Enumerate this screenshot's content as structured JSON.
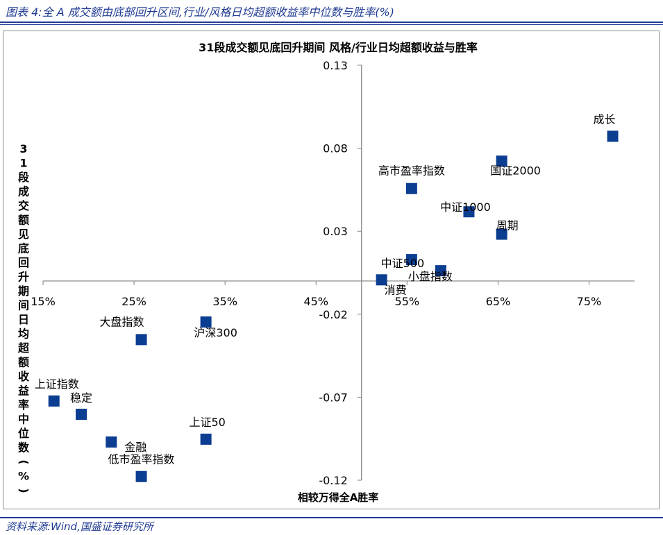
{
  "header": {
    "figure_title": "图表 4:全 A 成交额由底部回升区间,行业/风格日均超额收益率中位数与胜率(%)"
  },
  "source": {
    "text": "资料来源:Wind,国盛证券研究所"
  },
  "colors": {
    "marker": "#0b3d91",
    "axis": "#808080",
    "header_blue": "#1f3a93"
  },
  "chart_data": {
    "type": "scatter",
    "title": "31段成交额见底回升期间 风格/行业日均超额收益与胜率",
    "xlabel": "相较万得全A胜率",
    "ylabel": "31段成交额见底回升期间日均超额收益率中位数(%)",
    "xlim": [
      0.15,
      0.8
    ],
    "ylim": [
      -0.12,
      0.13
    ],
    "x_ticks": [
      0.15,
      0.25,
      0.35,
      0.45,
      0.55,
      0.65,
      0.75
    ],
    "x_tick_labels": [
      "15%",
      "25%",
      "35%",
      "45%",
      "55%",
      "65%",
      "75%"
    ],
    "y_ticks": [
      0.13,
      0.08,
      0.03,
      -0.02,
      -0.07,
      -0.12
    ],
    "y_tick_labels": [
      "0.13",
      "0.08",
      "0.03",
      "-0.02",
      "-0.07",
      "-0.12"
    ],
    "grid": false,
    "points": [
      {
        "label": "成长",
        "x": 0.776,
        "y": 0.0872
      },
      {
        "label": "国证2000",
        "x": 0.654,
        "y": 0.0722
      },
      {
        "label": "高市盈率指数",
        "x": 0.555,
        "y": 0.0557
      },
      {
        "label": "中证1000",
        "x": 0.618,
        "y": 0.0417
      },
      {
        "label": "周期",
        "x": 0.654,
        "y": 0.0282
      },
      {
        "label": "中证500",
        "x": 0.555,
        "y": 0.0129
      },
      {
        "label": "小盘指数",
        "x": 0.587,
        "y": 0.0062
      },
      {
        "label": "消费",
        "x": 0.522,
        "y": 0.0007
      },
      {
        "label": "沪深300",
        "x": 0.329,
        "y": -0.0247
      },
      {
        "label": "大盘指数",
        "x": 0.258,
        "y": -0.0353
      },
      {
        "label": "上证指数",
        "x": 0.162,
        "y": -0.0723
      },
      {
        "label": "稳定",
        "x": 0.192,
        "y": -0.0803
      },
      {
        "label": "上证50",
        "x": 0.329,
        "y": -0.0953
      },
      {
        "label": "金融",
        "x": 0.225,
        "y": -0.097
      },
      {
        "label": "低市盈率指数",
        "x": 0.258,
        "y": -0.1178
      }
    ]
  }
}
